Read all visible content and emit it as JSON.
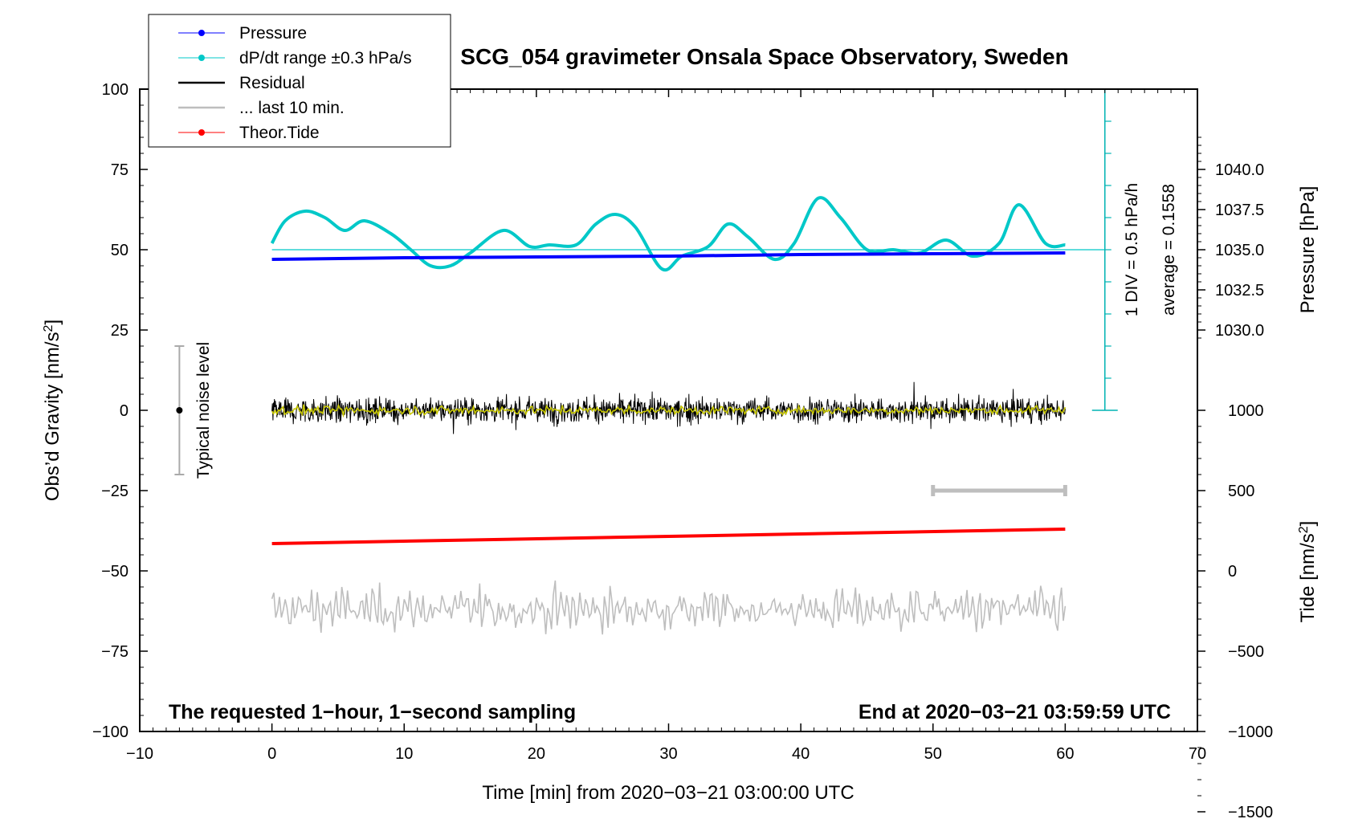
{
  "chart_data": {
    "type": "line",
    "title": "SCG_054 gravimeter Onsala Space Observatory, Sweden",
    "xlabel": "Time [min] from 2020−03−21 03:00:00 UTC",
    "ylabel_left": "Obs’d Gravity [nm/s",
    "ylabel_left_sup": "2",
    "ylabel_left_end": "]",
    "ylabel_pressure": "Pressure [hPa]",
    "ylabel_tide": "Tide [nm/s",
    "ylabel_tide_sup": "2",
    "ylabel_tide_end": "]",
    "xlim": [
      -10,
      70
    ],
    "ylim": [
      -100,
      100
    ],
    "x_ticks": [
      "−10",
      "0",
      "10",
      "20",
      "30",
      "40",
      "50",
      "60",
      "70"
    ],
    "y_ticks": [
      "100",
      "75",
      "50",
      "25",
      "0",
      "−25",
      "−50",
      "−75",
      "−100"
    ],
    "pressure_ticks": [
      "1040.0",
      "1037.5",
      "1035.0",
      "1032.5",
      "1030.0"
    ],
    "tide_ticks": [
      "1000",
      "500",
      "0",
      "−500",
      "−1000",
      "−1500"
    ],
    "pressure_scale": {
      "p_at_0": 1025.0,
      "p_at_100": 1045.0
    },
    "tide_scale": {
      "t_at_minus100": -1500,
      "t_at_0": 0,
      "t_at_minus50": 0,
      "note": ""
    },
    "legend": [
      {
        "label": "Pressure",
        "color": "#0000ff"
      },
      {
        "label": "dP/dt range ±0.3 hPa/s",
        "color": "#00c8c8"
      },
      {
        "label": "Residual",
        "color": "#000000"
      },
      {
        "label": "... last 10 min.",
        "color": "#bebebe"
      },
      {
        "label": "Theor.Tide",
        "color": "#ff0000"
      }
    ],
    "legend_position": "top-left",
    "series": [
      {
        "name": "Pressure",
        "color": "#0000ff",
        "units": "hPa",
        "x": [
          0,
          10,
          20,
          30,
          40,
          50,
          60
        ],
        "y": [
          1034.4,
          1034.5,
          1034.55,
          1034.6,
          1034.7,
          1034.75,
          1034.8
        ]
      },
      {
        "name": "dP/dt range ±0.3 hPa/s",
        "color": "#00c8c8",
        "units": "nm/s2 scale",
        "x": [
          0,
          1,
          2.5,
          4,
          5.5,
          7,
          9,
          10.5,
          12,
          13.5,
          15,
          17.5,
          19.5,
          21,
          23,
          24.5,
          26,
          27.5,
          29.5,
          31,
          33,
          34.5,
          36,
          38,
          39.5,
          41.3,
          43,
          45,
          47,
          49,
          51,
          53,
          55,
          56.5,
          58.5,
          60
        ],
        "y": [
          52,
          59,
          62,
          60,
          56,
          59,
          55,
          50,
          45,
          45,
          49,
          56,
          51,
          51.5,
          51.5,
          58,
          61,
          57,
          44,
          48,
          51,
          58,
          54,
          47,
          52,
          66,
          60,
          50,
          50,
          49,
          53,
          48,
          52,
          64,
          52,
          51.5
        ]
      },
      {
        "name": "Residual",
        "color": "#000000",
        "units": "nm/s2",
        "x_range": [
          0,
          60
        ],
        "amplitude_typical": 5,
        "amplitude_max": 13,
        "mean": 0
      },
      {
        "name": "Residual (smoothed)",
        "color": "#c8c800",
        "units": "nm/s2",
        "x_range": [
          0,
          60
        ],
        "amplitude_typical": 2,
        "mean": 0
      },
      {
        "name": "... last 10 min.",
        "color": "#bebebe",
        "units": "nm/s2",
        "x_range": [
          0,
          60
        ],
        "mean": -62,
        "amplitude_typical": 5,
        "amplitude_max": 9
      },
      {
        "name": "Theor.Tide",
        "color": "#ff0000",
        "units": "nm/s2",
        "x": [
          0,
          60
        ],
        "y": [
          -41.5,
          -37
        ]
      }
    ],
    "dpdt_reference_level": 50,
    "last10_bar": {
      "x": [
        50,
        60
      ],
      "y": -25
    },
    "noise_indicator": {
      "x": -7,
      "y_center": 0,
      "y_range": [
        -20,
        20
      ],
      "label": "Typical noise level"
    },
    "scale_bar": {
      "x": 63,
      "y_range": [
        0,
        100
      ],
      "label_div": "1 DIV = 0.5 hPa/h",
      "label_avg": "average = 0.1558",
      "color": "#00b4b4"
    },
    "bottom_left_note": "The requested 1−hour, 1−second sampling",
    "bottom_right_note": "End at 2020−03−21 03:59:59 UTC",
    "grid": false
  }
}
